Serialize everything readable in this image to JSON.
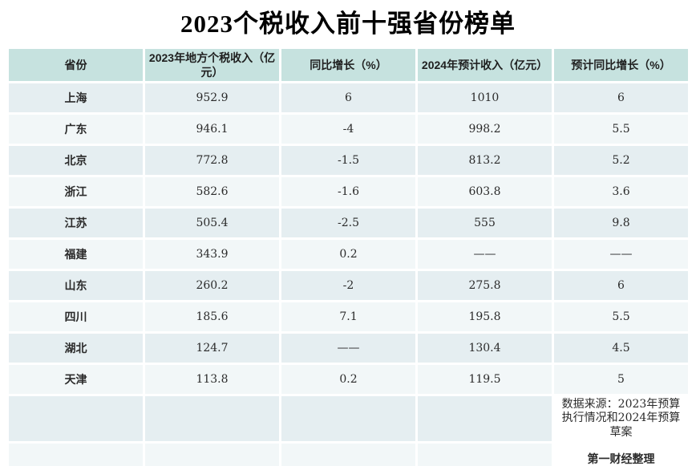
{
  "title": "2023个税收入前十强省份榜单",
  "colors": {
    "header_bg": "#c6e2df",
    "row_odd_bg": "#e5eef1",
    "row_even_bg": "#f2f7f8",
    "page_bg": "#ffffff",
    "text": "#2b2b2b"
  },
  "chart_data": {
    "type": "table",
    "title": "2023个税收入前十强省份榜单",
    "columns": [
      "省份",
      "2023年地方个税收入（亿元）",
      "同比增长（%）",
      "2024年预计收入（亿元）",
      "预计同比增长（%）"
    ],
    "rows": [
      [
        "上海",
        "952.9",
        "6",
        "1010",
        "6"
      ],
      [
        "广东",
        "946.1",
        "-4",
        "998.2",
        "5.5"
      ],
      [
        "北京",
        "772.8",
        "-1.5",
        "813.2",
        "5.2"
      ],
      [
        "浙江",
        "582.6",
        "-1.6",
        "603.8",
        "3.6"
      ],
      [
        "江苏",
        "505.4",
        "-2.5",
        "555",
        "9.8"
      ],
      [
        "福建",
        "343.9",
        "0.2",
        "——",
        "——"
      ],
      [
        "山东",
        "260.2",
        "-2",
        "275.8",
        "6"
      ],
      [
        "四川",
        "185.6",
        "7.1",
        "195.8",
        "5.5"
      ],
      [
        "湖北",
        "124.7",
        "——",
        "130.4",
        "4.5"
      ],
      [
        "天津",
        "113.8",
        "0.2",
        "119.5",
        "5"
      ]
    ],
    "source_note": "数据来源：2023年预算执行情况和2024年预算草案",
    "credit": "第一财经整理"
  }
}
